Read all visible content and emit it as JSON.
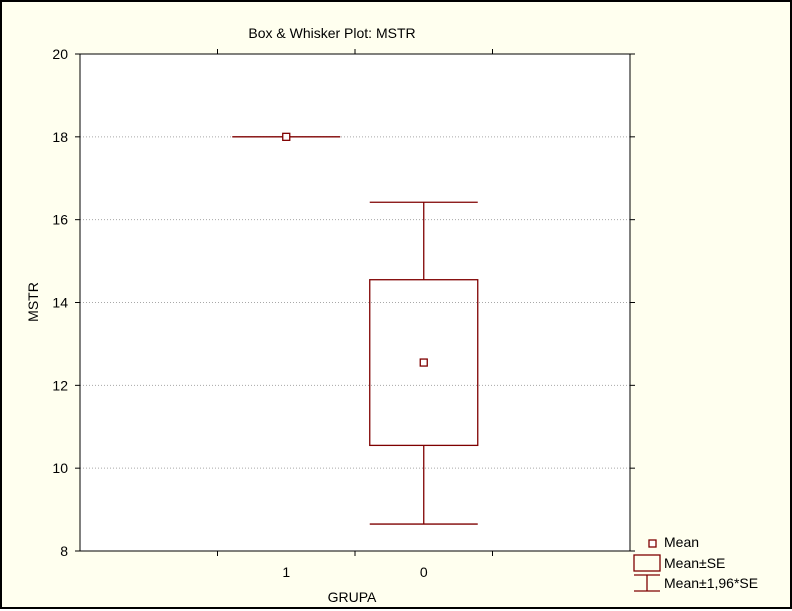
{
  "chart_data": {
    "type": "box",
    "title": "Box & Whisker Plot:   MSTR",
    "xlabel": "GRUPA",
    "ylabel": "MSTR",
    "ylim": [
      8,
      20
    ],
    "yticks": [
      8,
      10,
      12,
      14,
      16,
      18,
      20
    ],
    "categories": [
      "1",
      "0"
    ],
    "grid": "horizontal dotted",
    "boxes": [
      {
        "category": "1",
        "mean": 18.0,
        "se_low": 18.0,
        "se_high": 18.0,
        "ci_low": 18.0,
        "ci_high": 18.0
      },
      {
        "category": "0",
        "mean": 12.55,
        "se_low": 10.55,
        "se_high": 14.55,
        "ci_low": 8.65,
        "ci_high": 16.42
      }
    ],
    "legend": {
      "position": "bottom-right",
      "entries": [
        {
          "symbol": "mean-marker",
          "label": "Mean"
        },
        {
          "symbol": "box",
          "label": "Mean±SE"
        },
        {
          "symbol": "whisker",
          "label": "Mean±1,96*SE"
        }
      ]
    },
    "colors": {
      "series": "#7f0000",
      "background": "#ffffef",
      "plot_area": "#ffffff"
    }
  }
}
